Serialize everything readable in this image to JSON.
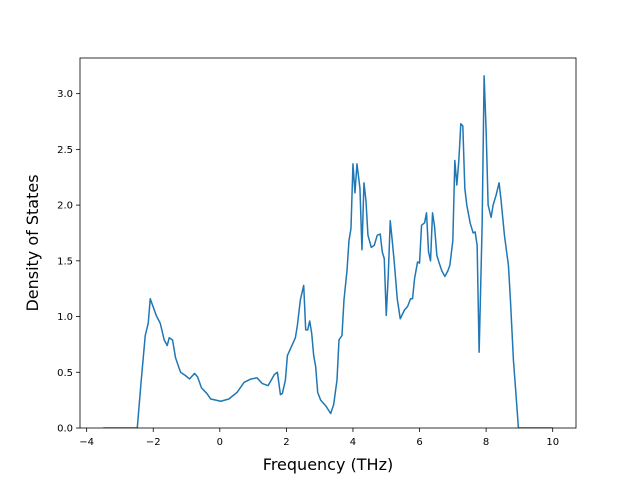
{
  "chart_data": {
    "type": "line",
    "xlabel": "Frequency (THz)",
    "ylabel": "Density of States",
    "xlim": [
      -4.2,
      10.7
    ],
    "ylim": [
      0,
      3.32
    ],
    "xticks": [
      {
        "value": -4,
        "label": "−4"
      },
      {
        "value": -2,
        "label": "−2"
      },
      0,
      2,
      4,
      6,
      8,
      10
    ],
    "yticks": [
      {
        "value": 0,
        "label": "0.0"
      },
      0.5,
      {
        "value": 1,
        "label": "1.0"
      },
      1.5,
      {
        "value": 2,
        "label": "2.0"
      },
      2.5,
      {
        "value": 3,
        "label": "3.0"
      }
    ],
    "grid": false,
    "series": [
      {
        "color": "#1f77b4",
        "x": [
          -3.5,
          -2.48,
          -2.36,
          -2.24,
          -2.15,
          -2.09,
          -1.91,
          -1.79,
          -1.67,
          -1.58,
          -1.52,
          -1.42,
          -1.33,
          -1.18,
          -1.03,
          -0.91,
          -0.76,
          -0.67,
          -0.55,
          -0.39,
          -0.27,
          0.03,
          0.27,
          0.52,
          0.73,
          0.94,
          1.12,
          1.27,
          1.45,
          1.64,
          1.73,
          1.82,
          1.88,
          1.97,
          2.03,
          2.15,
          2.27,
          2.33,
          2.42,
          2.52,
          2.58,
          2.64,
          2.7,
          2.76,
          2.82,
          2.88,
          2.94,
          3.03,
          3.18,
          3.33,
          3.42,
          3.52,
          3.58,
          3.67,
          3.73,
          3.82,
          3.88,
          3.94,
          4.0,
          4.06,
          4.12,
          4.21,
          4.27,
          4.33,
          4.39,
          4.45,
          4.55,
          4.64,
          4.73,
          4.82,
          4.88,
          4.94,
          5.0,
          5.06,
          5.12,
          5.18,
          5.24,
          5.33,
          5.42,
          5.55,
          5.64,
          5.73,
          5.79,
          5.85,
          5.94,
          6.0,
          6.06,
          6.15,
          6.21,
          6.27,
          6.33,
          6.39,
          6.45,
          6.52,
          6.58,
          6.67,
          6.76,
          6.85,
          6.91,
          7.0,
          7.06,
          7.12,
          7.18,
          7.24,
          7.3,
          7.36,
          7.42,
          7.52,
          7.61,
          7.67,
          7.73,
          7.79,
          7.88,
          7.94,
          8.0,
          8.06,
          8.15,
          8.21,
          8.3,
          8.39,
          8.45,
          8.55,
          8.67,
          8.73,
          8.82,
          8.91,
          8.97,
          10.0
        ],
        "values": [
          0,
          0,
          0.43,
          0.83,
          0.94,
          1.16,
          1.01,
          0.94,
          0.79,
          0.74,
          0.81,
          0.79,
          0.63,
          0.5,
          0.47,
          0.44,
          0.49,
          0.46,
          0.36,
          0.31,
          0.26,
          0.24,
          0.26,
          0.32,
          0.41,
          0.44,
          0.45,
          0.4,
          0.38,
          0.48,
          0.5,
          0.3,
          0.31,
          0.43,
          0.65,
          0.73,
          0.81,
          0.92,
          1.15,
          1.28,
          0.88,
          0.88,
          0.96,
          0.85,
          0.65,
          0.55,
          0.32,
          0.25,
          0.2,
          0.13,
          0.21,
          0.43,
          0.79,
          0.83,
          1.15,
          1.41,
          1.68,
          1.79,
          2.37,
          2.11,
          2.37,
          2.15,
          1.6,
          2.2,
          2.04,
          1.73,
          1.62,
          1.64,
          1.73,
          1.74,
          1.58,
          1.52,
          1.01,
          1.37,
          1.86,
          1.68,
          1.49,
          1.16,
          0.98,
          1.06,
          1.09,
          1.16,
          1.16,
          1.34,
          1.49,
          1.48,
          1.82,
          1.84,
          1.93,
          1.58,
          1.5,
          1.93,
          1.81,
          1.55,
          1.49,
          1.41,
          1.36,
          1.41,
          1.46,
          1.68,
          2.4,
          2.18,
          2.4,
          2.73,
          2.71,
          2.15,
          2.0,
          1.84,
          1.75,
          1.76,
          1.64,
          0.68,
          1.82,
          3.16,
          2.67,
          2.0,
          1.89,
          2.0,
          2.09,
          2.2,
          2.04,
          1.73,
          1.46,
          1.15,
          0.61,
          0.25,
          0,
          0
        ]
      }
    ]
  }
}
